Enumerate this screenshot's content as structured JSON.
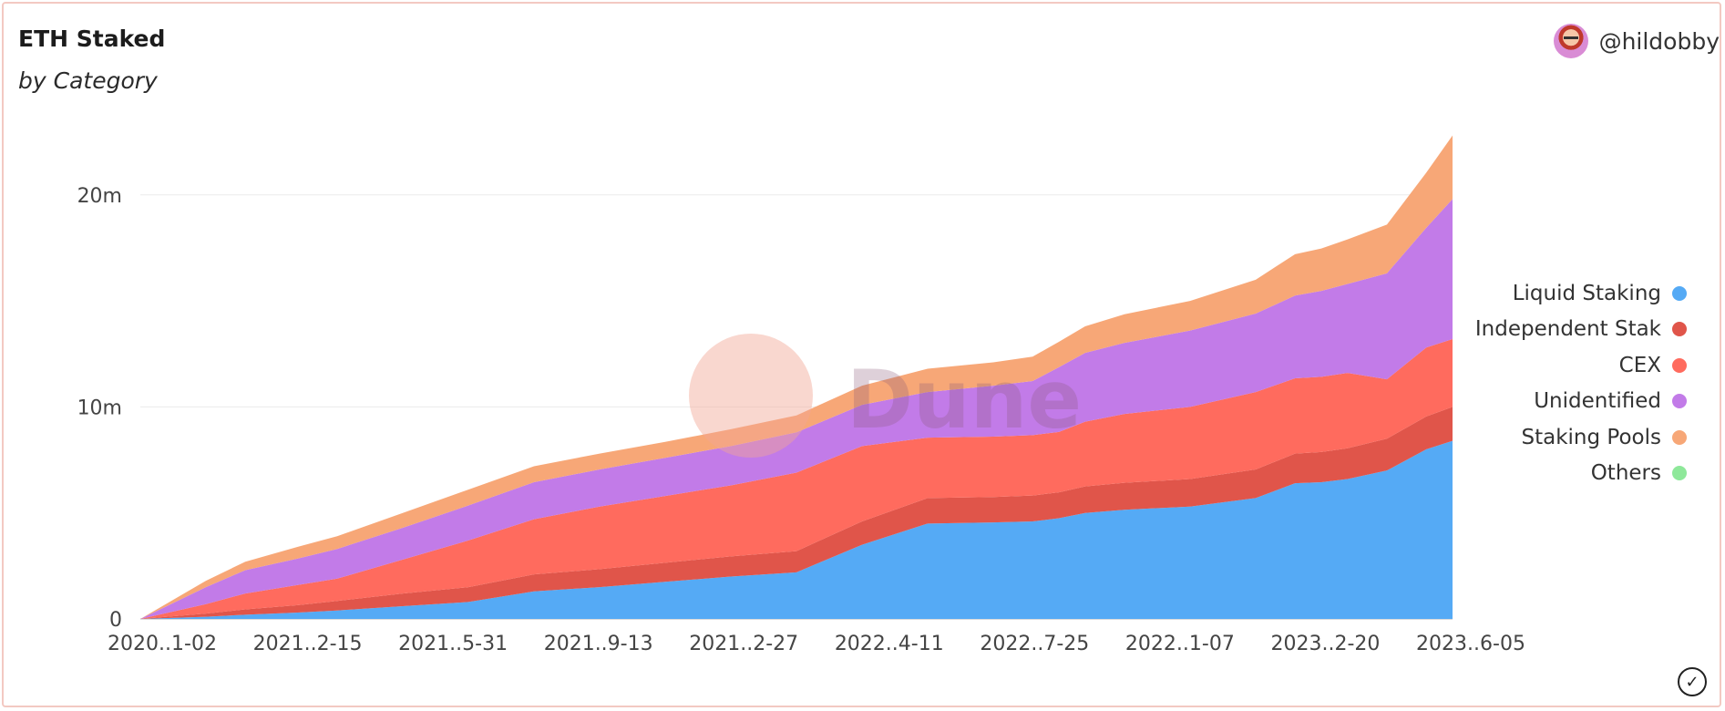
{
  "header": {
    "title": "ETH Staked",
    "subtitle": "by Category",
    "author": "@hildobby"
  },
  "watermark": "Dune",
  "colors": {
    "liquid_staking": "#55aaf5",
    "independent": "#e0554a",
    "cex": "#ff6b5e",
    "unidentified": "#c27be8",
    "staking_pools": "#f7a777",
    "others": "#8ee89a"
  },
  "chart_data": {
    "type": "area",
    "stacked": true,
    "title": "ETH Staked",
    "subtitle": "by Category",
    "ylim": [
      0,
      23000000
    ],
    "yticks": [
      {
        "value": 0,
        "label": "0"
      },
      {
        "value": 10000000,
        "label": "10m"
      },
      {
        "value": 20000000,
        "label": "20m"
      }
    ],
    "xtick_labels": [
      "2020..1-02",
      "2021..2-15",
      "2021..5-31",
      "2021..9-13",
      "2021..2-27",
      "2022..4-11",
      "2022..7-25",
      "2022..1-07",
      "2023..2-20",
      "2023..6-05"
    ],
    "legend_position": "right",
    "x": [
      0,
      5,
      8,
      12,
      15,
      20,
      25,
      30,
      35,
      40,
      45,
      50,
      55,
      60,
      65,
      68,
      70,
      72,
      75,
      80,
      85,
      88,
      90,
      92,
      95,
      98,
      100
    ],
    "series": [
      {
        "name": "Liquid Staking",
        "color_key": "liquid_staking",
        "values": [
          0,
          0.1,
          0.2,
          0.3,
          0.4,
          0.6,
          0.8,
          1.3,
          1.5,
          1.75,
          2.0,
          2.2,
          3.5,
          4.5,
          4.55,
          4.6,
          4.75,
          5.0,
          5.15,
          5.3,
          5.7,
          6.4,
          6.45,
          6.6,
          7.0,
          8.0,
          8.4
        ]
      },
      {
        "name": "Independent Stakers",
        "color_key": "independent",
        "values": [
          0,
          0.15,
          0.25,
          0.35,
          0.45,
          0.6,
          0.7,
          0.8,
          0.85,
          0.9,
          0.95,
          1.0,
          1.1,
          1.2,
          1.2,
          1.22,
          1.22,
          1.25,
          1.27,
          1.3,
          1.35,
          1.4,
          1.42,
          1.45,
          1.5,
          1.55,
          1.6
        ]
      },
      {
        "name": "CEX",
        "color_key": "cex",
        "values": [
          0,
          0.45,
          0.75,
          0.95,
          1.05,
          1.6,
          2.2,
          2.6,
          2.95,
          3.15,
          3.35,
          3.7,
          3.55,
          2.85,
          2.85,
          2.85,
          2.85,
          3.05,
          3.25,
          3.4,
          3.65,
          3.55,
          3.55,
          3.55,
          2.8,
          3.25,
          3.2
        ]
      },
      {
        "name": "Unidentified",
        "color_key": "unidentified",
        "values": [
          0,
          0.8,
          1.1,
          1.25,
          1.4,
          1.5,
          1.65,
          1.75,
          1.75,
          1.8,
          1.85,
          1.9,
          1.95,
          2.15,
          2.4,
          2.55,
          3.05,
          3.25,
          3.35,
          3.6,
          3.7,
          3.9,
          4.05,
          4.2,
          5.0,
          5.65,
          6.6
        ]
      },
      {
        "name": "Staking Pools",
        "color_key": "staking_pools",
        "values": [
          0,
          0.3,
          0.4,
          0.55,
          0.6,
          0.7,
          0.75,
          0.75,
          0.75,
          0.75,
          0.8,
          0.8,
          0.9,
          1.1,
          1.1,
          1.15,
          1.2,
          1.25,
          1.35,
          1.4,
          1.6,
          1.95,
          2.0,
          2.1,
          2.3,
          2.6,
          3.0
        ]
      },
      {
        "name": "Others",
        "color_key": "others",
        "values": [
          0,
          0,
          0,
          0,
          0,
          0,
          0,
          0,
          0,
          0,
          0,
          0,
          0,
          0,
          0,
          0,
          0,
          0,
          0,
          0,
          0,
          0,
          0,
          0,
          0,
          0,
          0
        ]
      }
    ],
    "value_unit": "million ETH",
    "legend": [
      "Liquid Staking",
      "Independent Stak",
      "CEX",
      "Unidentified",
      "Staking Pools",
      "Others"
    ]
  }
}
